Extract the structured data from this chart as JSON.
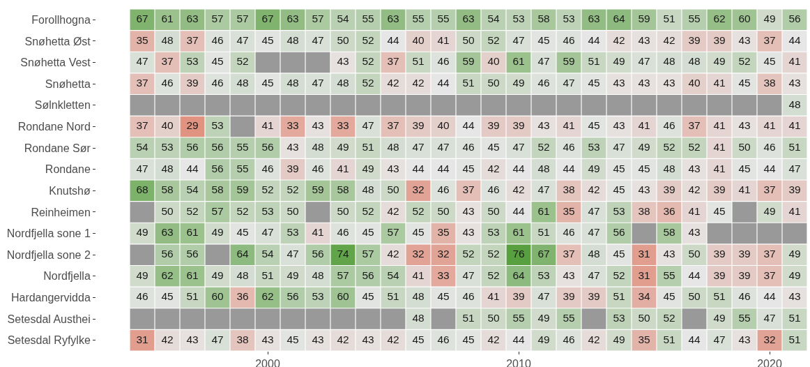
{
  "chart_data": {
    "type": "heatmap",
    "categories": [
      null,
      null,
      null,
      null,
      null,
      "2000",
      null,
      null,
      null,
      null,
      null,
      null,
      null,
      null,
      null,
      "2010",
      null,
      null,
      null,
      null,
      null,
      null,
      null,
      null,
      null,
      "2020",
      null
    ],
    "y_categories": [
      "Forollhogna",
      "Snøhetta Øst",
      "Snøhetta Vest",
      "Snøhetta",
      "Sølnkletten",
      "Rondane Nord",
      "Rondane Sør",
      "Rondane",
      "Knutshø",
      "Reinheimen",
      "Nordfjella sone 1",
      "Nordfjella sone 2",
      "Nordfjella",
      "Hardangervidda",
      "Setesdal Austhei",
      "Setesdal Ryfylke"
    ],
    "cells": [
      [
        67,
        61,
        63,
        57,
        57,
        67,
        63,
        57,
        54,
        55,
        63,
        55,
        55,
        63,
        54,
        53,
        58,
        53,
        63,
        64,
        59,
        51,
        55,
        62,
        60,
        49,
        56
      ],
      [
        35,
        48,
        37,
        46,
        47,
        45,
        48,
        47,
        50,
        52,
        44,
        40,
        41,
        50,
        52,
        47,
        45,
        46,
        44,
        42,
        43,
        42,
        39,
        39,
        43,
        37,
        44
      ],
      [
        47,
        37,
        53,
        45,
        52,
        null,
        null,
        null,
        43,
        52,
        37,
        51,
        46,
        59,
        40,
        61,
        47,
        59,
        51,
        49,
        47,
        48,
        48,
        49,
        52,
        45,
        41
      ],
      [
        37,
        46,
        39,
        46,
        48,
        45,
        48,
        47,
        48,
        52,
        42,
        42,
        44,
        51,
        50,
        49,
        46,
        47,
        45,
        43,
        43,
        43,
        40,
        41,
        45,
        38,
        43
      ],
      [
        null,
        null,
        null,
        null,
        null,
        null,
        null,
        null,
        null,
        null,
        null,
        null,
        null,
        null,
        null,
        null,
        null,
        null,
        null,
        null,
        null,
        null,
        null,
        null,
        null,
        null,
        48
      ],
      [
        37,
        40,
        29,
        53,
        null,
        41,
        33,
        43,
        33,
        47,
        37,
        39,
        40,
        44,
        39,
        39,
        43,
        41,
        45,
        43,
        41,
        46,
        37,
        41,
        43,
        41,
        41
      ],
      [
        54,
        53,
        56,
        56,
        55,
        56,
        43,
        48,
        49,
        51,
        48,
        47,
        47,
        46,
        45,
        47,
        52,
        46,
        53,
        47,
        49,
        52,
        52,
        41,
        50,
        46,
        51
      ],
      [
        47,
        48,
        44,
        56,
        55,
        46,
        39,
        46,
        41,
        49,
        43,
        44,
        44,
        45,
        42,
        44,
        48,
        44,
        49,
        45,
        45,
        48,
        43,
        41,
        45,
        44,
        47
      ],
      [
        68,
        58,
        54,
        58,
        59,
        52,
        52,
        59,
        58,
        48,
        50,
        32,
        46,
        37,
        46,
        42,
        47,
        38,
        42,
        45,
        43,
        39,
        42,
        39,
        41,
        37,
        39
      ],
      [
        null,
        50,
        52,
        57,
        52,
        53,
        50,
        null,
        50,
        52,
        42,
        52,
        50,
        43,
        50,
        44,
        61,
        35,
        47,
        53,
        38,
        36,
        41,
        45,
        null,
        49,
        41
      ],
      [
        49,
        63,
        61,
        49,
        45,
        47,
        53,
        41,
        46,
        45,
        57,
        45,
        35,
        43,
        53,
        61,
        51,
        46,
        47,
        56,
        null,
        58,
        43,
        null,
        null,
        null,
        null
      ],
      [
        null,
        56,
        56,
        null,
        64,
        54,
        47,
        56,
        74,
        57,
        42,
        32,
        32,
        52,
        52,
        76,
        67,
        37,
        48,
        45,
        31,
        43,
        50,
        39,
        39,
        37,
        49
      ],
      [
        49,
        62,
        61,
        49,
        48,
        51,
        49,
        48,
        57,
        56,
        54,
        41,
        33,
        47,
        52,
        64,
        53,
        43,
        47,
        52,
        31,
        55,
        44,
        39,
        39,
        37,
        49
      ],
      [
        46,
        45,
        51,
        60,
        36,
        62,
        56,
        53,
        60,
        45,
        51,
        48,
        45,
        46,
        41,
        39,
        47,
        39,
        39,
        51,
        34,
        45,
        50,
        51,
        46,
        44,
        43
      ],
      [
        null,
        null,
        null,
        null,
        null,
        null,
        null,
        null,
        null,
        null,
        null,
        48,
        null,
        51,
        50,
        55,
        49,
        55,
        null,
        53,
        50,
        52,
        null,
        49,
        55,
        47,
        51
      ],
      [
        31,
        42,
        43,
        47,
        38,
        43,
        45,
        43,
        42,
        43,
        42,
        45,
        46,
        45,
        42,
        44,
        49,
        46,
        42,
        49,
        35,
        51,
        44,
        47,
        43,
        32,
        51
      ]
    ],
    "data_labels": true
  }
}
